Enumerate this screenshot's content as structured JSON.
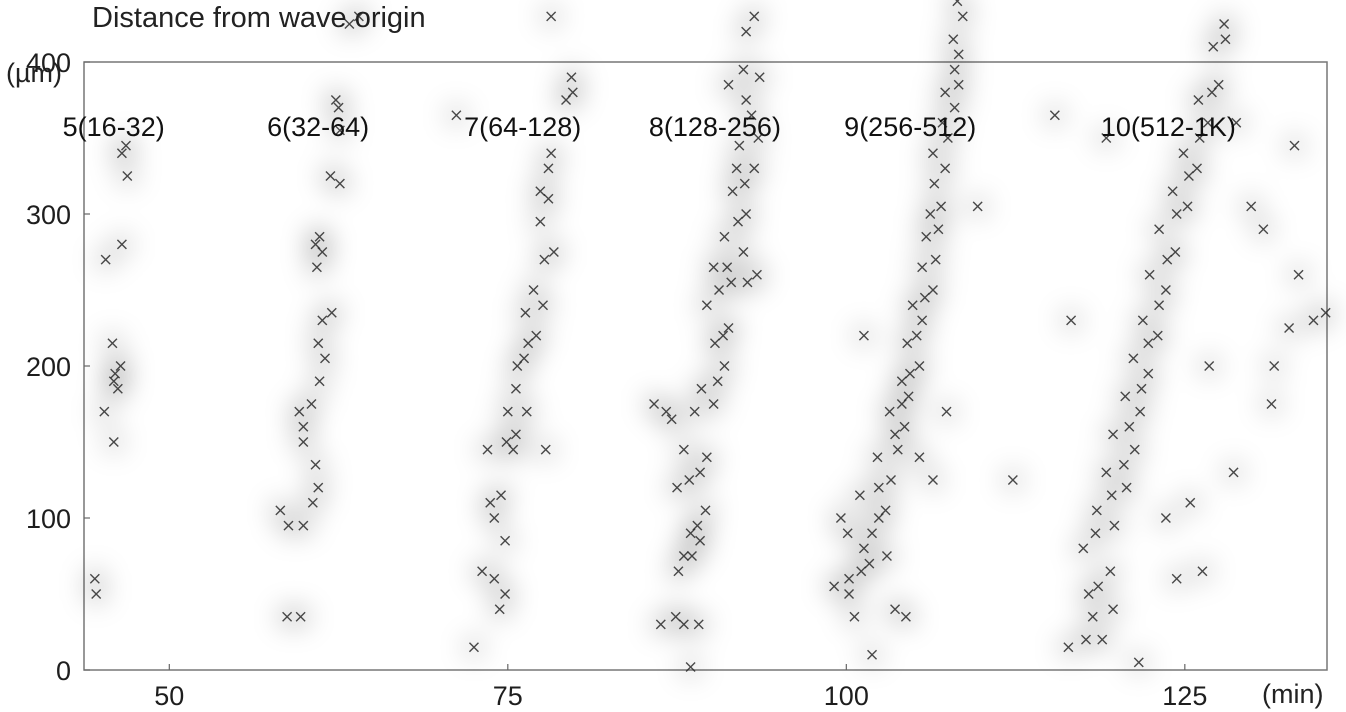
{
  "title": "Distance from wave origin",
  "y_unit": "(µm)",
  "x_unit": "(min)",
  "chart_data": {
    "type": "scatter",
    "title": "Distance from wave origin",
    "xlabel": "(min)",
    "ylabel": "(µm)",
    "xlim": [
      43.7,
      135.5
    ],
    "ylim": [
      0,
      400
    ],
    "x_ticks": [
      50,
      75,
      100,
      125
    ],
    "y_ticks": [
      0,
      100,
      200,
      300,
      400
    ],
    "grid": false,
    "marker": "x",
    "color": "#2b2b2b",
    "groups": [
      {
        "label": "5(16-32)",
        "points": [
          [
            44.5,
            60
          ],
          [
            44.6,
            50
          ],
          [
            45.3,
            270
          ],
          [
            46.5,
            340
          ],
          [
            46.8,
            345
          ],
          [
            46.9,
            325
          ],
          [
            46.5,
            280
          ],
          [
            45.8,
            215
          ],
          [
            46.4,
            200
          ],
          [
            45.9,
            190
          ],
          [
            46.2,
            185
          ],
          [
            45.2,
            170
          ],
          [
            45.9,
            150
          ],
          [
            46.0,
            195
          ]
        ]
      },
      {
        "label": "6(32-64)",
        "points": [
          [
            58.7,
            35
          ],
          [
            59.7,
            35
          ],
          [
            58.2,
            105
          ],
          [
            58.8,
            95
          ],
          [
            59.9,
            95
          ],
          [
            59.6,
            170
          ],
          [
            60.5,
            175
          ],
          [
            59.9,
            160
          ],
          [
            59.9,
            150
          ],
          [
            60.8,
            135
          ],
          [
            61.0,
            120
          ],
          [
            60.6,
            110
          ],
          [
            61.1,
            190
          ],
          [
            61.5,
            205
          ],
          [
            61.3,
            230
          ],
          [
            62.0,
            235
          ],
          [
            61.0,
            215
          ],
          [
            60.9,
            265
          ],
          [
            60.8,
            280
          ],
          [
            61.1,
            285
          ],
          [
            61.3,
            275
          ],
          [
            61.9,
            325
          ],
          [
            62.6,
            320
          ],
          [
            62.6,
            355
          ],
          [
            62.3,
            375
          ],
          [
            62.5,
            370
          ],
          [
            63.3,
            425
          ],
          [
            64.0,
            430
          ]
        ]
      },
      {
        "label": "7(64-128)",
        "points": [
          [
            72.5,
            15
          ],
          [
            73.1,
            65
          ],
          [
            74.0,
            60
          ],
          [
            74.8,
            50
          ],
          [
            74.4,
            40
          ],
          [
            74.8,
            85
          ],
          [
            74.0,
            100
          ],
          [
            73.7,
            110
          ],
          [
            74.5,
            115
          ],
          [
            73.5,
            145
          ],
          [
            74.9,
            150
          ],
          [
            75.4,
            145
          ],
          [
            75.6,
            155
          ],
          [
            75.0,
            170
          ],
          [
            76.4,
            170
          ],
          [
            75.6,
            185
          ],
          [
            76.2,
            205
          ],
          [
            75.7,
            200
          ],
          [
            76.5,
            215
          ],
          [
            77.1,
            220
          ],
          [
            76.3,
            235
          ],
          [
            77.6,
            240
          ],
          [
            76.9,
            250
          ],
          [
            77.7,
            270
          ],
          [
            78.4,
            275
          ],
          [
            77.4,
            295
          ],
          [
            78.0,
            310
          ],
          [
            77.4,
            315
          ],
          [
            78.0,
            330
          ],
          [
            78.2,
            340
          ],
          [
            79.3,
            375
          ],
          [
            79.8,
            380
          ],
          [
            79.7,
            390
          ],
          [
            78.2,
            430
          ],
          [
            71.2,
            365
          ],
          [
            77.8,
            145
          ]
        ]
      },
      {
        "label": "8(128-256)",
        "points": [
          [
            88.5,
            2
          ],
          [
            86.3,
            30
          ],
          [
            87.4,
            35
          ],
          [
            88.0,
            30
          ],
          [
            89.1,
            30
          ],
          [
            87.6,
            65
          ],
          [
            88.0,
            75
          ],
          [
            88.6,
            75
          ],
          [
            89.2,
            85
          ],
          [
            88.5,
            90
          ],
          [
            89.0,
            95
          ],
          [
            87.5,
            120
          ],
          [
            88.4,
            125
          ],
          [
            89.2,
            130
          ],
          [
            88.0,
            145
          ],
          [
            89.7,
            140
          ],
          [
            87.1,
            165
          ],
          [
            88.8,
            170
          ],
          [
            90.2,
            175
          ],
          [
            89.3,
            185
          ],
          [
            90.5,
            190
          ],
          [
            91.0,
            200
          ],
          [
            90.3,
            215
          ],
          [
            90.9,
            220
          ],
          [
            91.3,
            225
          ],
          [
            89.7,
            240
          ],
          [
            90.6,
            250
          ],
          [
            91.5,
            255
          ],
          [
            92.7,
            255
          ],
          [
            90.2,
            265
          ],
          [
            91.2,
            265
          ],
          [
            92.4,
            275
          ],
          [
            91.0,
            285
          ],
          [
            92.0,
            295
          ],
          [
            92.6,
            300
          ],
          [
            91.6,
            315
          ],
          [
            92.5,
            320
          ],
          [
            91.9,
            330
          ],
          [
            93.2,
            330
          ],
          [
            92.1,
            345
          ],
          [
            93.5,
            350
          ],
          [
            93.0,
            365
          ],
          [
            92.6,
            375
          ],
          [
            91.3,
            385
          ],
          [
            92.4,
            395
          ],
          [
            93.6,
            390
          ],
          [
            92.6,
            420
          ],
          [
            93.2,
            430
          ],
          [
            93.4,
            260
          ],
          [
            85.8,
            175
          ],
          [
            86.7,
            170
          ],
          [
            89.6,
            105
          ]
        ]
      },
      {
        "label": "9(256-512)",
        "points": [
          [
            101.9,
            10
          ],
          [
            100.6,
            35
          ],
          [
            100.2,
            50
          ],
          [
            100.2,
            60
          ],
          [
            101.1,
            65
          ],
          [
            101.7,
            70
          ],
          [
            101.3,
            80
          ],
          [
            101.9,
            90
          ],
          [
            102.4,
            100
          ],
          [
            102.9,
            105
          ],
          [
            102.4,
            120
          ],
          [
            103.3,
            125
          ],
          [
            102.3,
            140
          ],
          [
            103.8,
            145
          ],
          [
            103.6,
            155
          ],
          [
            104.3,
            160
          ],
          [
            103.2,
            170
          ],
          [
            104.1,
            175
          ],
          [
            104.6,
            180
          ],
          [
            104.1,
            190
          ],
          [
            104.7,
            195
          ],
          [
            105.4,
            200
          ],
          [
            104.5,
            215
          ],
          [
            105.2,
            220
          ],
          [
            105.6,
            230
          ],
          [
            104.9,
            240
          ],
          [
            105.8,
            245
          ],
          [
            106.4,
            250
          ],
          [
            105.6,
            265
          ],
          [
            106.6,
            270
          ],
          [
            105.9,
            285
          ],
          [
            106.8,
            290
          ],
          [
            106.2,
            300
          ],
          [
            107.0,
            305
          ],
          [
            106.5,
            320
          ],
          [
            107.3,
            330
          ],
          [
            106.4,
            340
          ],
          [
            107.5,
            350
          ],
          [
            107.1,
            360
          ],
          [
            108.0,
            370
          ],
          [
            107.3,
            380
          ],
          [
            108.3,
            385
          ],
          [
            108.0,
            395
          ],
          [
            108.3,
            405
          ],
          [
            107.9,
            415
          ],
          [
            108.6,
            430
          ],
          [
            108.2,
            440
          ],
          [
            99.6,
            100
          ],
          [
            99.1,
            55
          ],
          [
            103.6,
            40
          ],
          [
            104.4,
            35
          ],
          [
            103.0,
            75
          ],
          [
            105.4,
            140
          ],
          [
            106.4,
            125
          ],
          [
            107.4,
            170
          ],
          [
            109.7,
            305
          ],
          [
            112.3,
            125
          ],
          [
            101.3,
            220
          ],
          [
            100.1,
            90
          ],
          [
            101.0,
            115
          ]
        ]
      },
      {
        "label": "10(512-1K)",
        "points": [
          [
            116.4,
            15
          ],
          [
            117.7,
            20
          ],
          [
            118.9,
            20
          ],
          [
            118.2,
            35
          ],
          [
            119.7,
            40
          ],
          [
            117.9,
            50
          ],
          [
            118.6,
            55
          ],
          [
            119.5,
            65
          ],
          [
            117.5,
            80
          ],
          [
            118.4,
            90
          ],
          [
            119.8,
            95
          ],
          [
            118.5,
            105
          ],
          [
            119.6,
            115
          ],
          [
            120.7,
            120
          ],
          [
            119.2,
            130
          ],
          [
            120.5,
            135
          ],
          [
            121.3,
            145
          ],
          [
            119.7,
            155
          ],
          [
            120.9,
            160
          ],
          [
            121.7,
            170
          ],
          [
            120.6,
            180
          ],
          [
            121.8,
            185
          ],
          [
            122.3,
            195
          ],
          [
            121.2,
            205
          ],
          [
            122.3,
            215
          ],
          [
            123.0,
            220
          ],
          [
            121.9,
            230
          ],
          [
            123.1,
            240
          ],
          [
            123.6,
            250
          ],
          [
            122.4,
            260
          ],
          [
            123.7,
            270
          ],
          [
            124.3,
            275
          ],
          [
            123.1,
            290
          ],
          [
            124.4,
            300
          ],
          [
            125.2,
            305
          ],
          [
            124.1,
            315
          ],
          [
            125.3,
            325
          ],
          [
            125.9,
            330
          ],
          [
            124.9,
            340
          ],
          [
            126.1,
            350
          ],
          [
            126.7,
            360
          ],
          [
            126.0,
            375
          ],
          [
            127.0,
            380
          ],
          [
            127.5,
            385
          ],
          [
            127.1,
            410
          ],
          [
            128.0,
            415
          ],
          [
            127.9,
            425
          ],
          [
            121.6,
            5
          ],
          [
            115.4,
            365
          ],
          [
            116.6,
            230
          ],
          [
            119.2,
            350
          ],
          [
            129.9,
            305
          ],
          [
            130.8,
            290
          ],
          [
            131.6,
            200
          ],
          [
            131.4,
            175
          ],
          [
            133.1,
            345
          ],
          [
            133.4,
            260
          ],
          [
            134.5,
            230
          ],
          [
            135.4,
            235
          ],
          [
            132.7,
            225
          ],
          [
            128.6,
            130
          ],
          [
            128.8,
            360
          ],
          [
            124.4,
            60
          ],
          [
            126.3,
            65
          ],
          [
            123.6,
            100
          ],
          [
            125.4,
            110
          ],
          [
            126.8,
            200
          ]
        ]
      }
    ]
  }
}
